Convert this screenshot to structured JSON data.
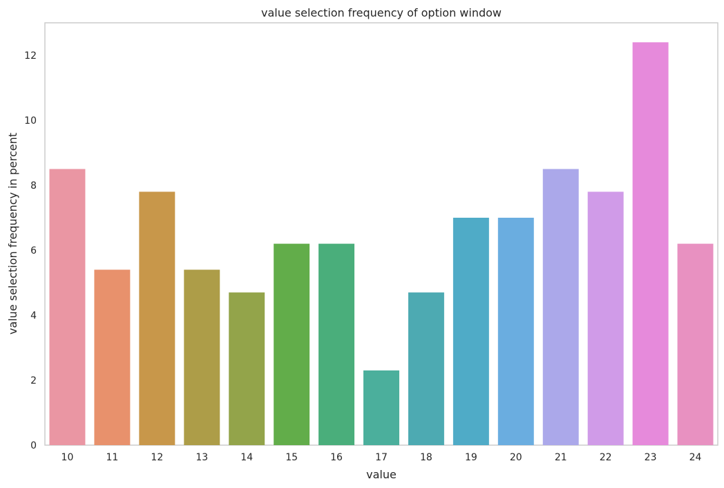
{
  "chart_data": {
    "type": "bar",
    "title": "value selection frequency of option window",
    "xlabel": "value",
    "ylabel": "value selection frequency in percent",
    "categories": [
      "10",
      "11",
      "12",
      "13",
      "14",
      "15",
      "16",
      "17",
      "18",
      "19",
      "20",
      "21",
      "22",
      "23",
      "24"
    ],
    "values": [
      8.5,
      5.4,
      7.8,
      5.4,
      4.7,
      6.2,
      6.2,
      2.3,
      4.7,
      7.0,
      7.0,
      8.5,
      7.8,
      12.4,
      6.2
    ],
    "colors": [
      "#ea96a3",
      "#e8916c",
      "#c8974a",
      "#ad9d48",
      "#93a44a",
      "#62ad4a",
      "#4aae7b",
      "#4baf9c",
      "#4daab2",
      "#4fabc7",
      "#6aade0",
      "#aba8ea",
      "#d09be8",
      "#e68adb",
      "#e891c1"
    ],
    "ylim": [
      0,
      13
    ],
    "yticks": [
      0,
      2,
      4,
      6,
      8,
      10,
      12
    ],
    "grid": false,
    "legend": "none"
  }
}
